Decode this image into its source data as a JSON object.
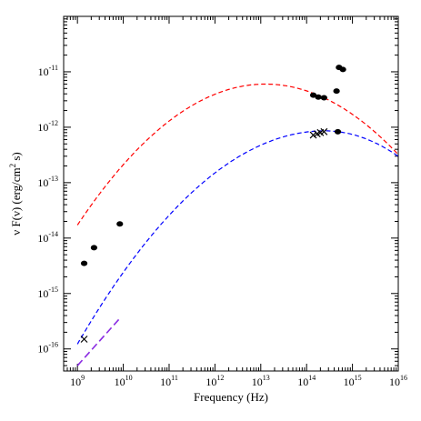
{
  "chart_data": {
    "type": "scatter",
    "title": "",
    "xlabel": "Frequency  (Hz)",
    "ylabel_main": "ν F(ν)  (erg/cm",
    "ylabel_sup": "2",
    "ylabel_end": " s)",
    "x_scale": "log",
    "y_scale": "log",
    "xlim": [
      500000000.0,
      1e+16
    ],
    "ylim": [
      4e-17,
      1e-10
    ],
    "x_ticks": [
      {
        "base": "10",
        "exp": "9",
        "value": 1000000000.0
      },
      {
        "base": "10",
        "exp": "10",
        "value": 10000000000.0
      },
      {
        "base": "10",
        "exp": "11",
        "value": 100000000000.0
      },
      {
        "base": "10",
        "exp": "12",
        "value": 1000000000000.0
      },
      {
        "base": "10",
        "exp": "13",
        "value": 10000000000000.0
      },
      {
        "base": "10",
        "exp": "14",
        "value": 100000000000000.0
      },
      {
        "base": "10",
        "exp": "15",
        "value": 1000000000000000.0
      },
      {
        "base": "10",
        "exp": "16",
        "value": 1e+16
      }
    ],
    "y_ticks": [
      {
        "base": "10",
        "exp": "-16",
        "value": 1e-16
      },
      {
        "base": "10",
        "exp": "-15",
        "value": 1e-15
      },
      {
        "base": "10",
        "exp": "-14",
        "value": 1e-14
      },
      {
        "base": "10",
        "exp": "-13",
        "value": 1e-13
      },
      {
        "base": "10",
        "exp": "-12",
        "value": 1e-12
      },
      {
        "base": "10",
        "exp": "-11",
        "value": 1e-11
      }
    ],
    "series": [
      {
        "marker": "circle",
        "color": "#000000",
        "points": [
          {
            "x": 1400000000.0,
            "y": 3.5e-15
          },
          {
            "x": 2300000000.0,
            "y": 6.7e-15
          },
          {
            "x": 8400000000.0,
            "y": 1.8e-14
          },
          {
            "x": 140000000000000.0,
            "y": 3.8e-12
          },
          {
            "x": 180000000000000.0,
            "y": 3.5e-12
          },
          {
            "x": 240000000000000.0,
            "y": 3.4e-12
          },
          {
            "x": 450000000000000.0,
            "y": 4.5e-12
          },
          {
            "x": 480000000000000.0,
            "y": 8.3e-13
          },
          {
            "x": 510000000000000.0,
            "y": 1.2e-11
          },
          {
            "x": 620000000000000.0,
            "y": 1.1e-11
          }
        ]
      },
      {
        "marker": "cross",
        "color": "#000000",
        "points": [
          {
            "x": 1400000000.0,
            "y": 1.5e-16
          },
          {
            "x": 140000000000000.0,
            "y": 7.2e-13
          },
          {
            "x": 170000000000000.0,
            "y": 7.6e-13
          },
          {
            "x": 200000000000000.0,
            "y": 8e-13
          },
          {
            "x": 240000000000000.0,
            "y": 8.3e-13
          }
        ]
      },
      {
        "style": "dashed",
        "color": "#ff0000",
        "curve": {
          "peak_x": 12600000000000.0,
          "peak_y": 6e-12,
          "alpha_low": 0.55,
          "alpha_high": 0.55
        },
        "x_range": [
          1000000000.0,
          1e+16
        ]
      },
      {
        "style": "dashed",
        "color": "#0000ff",
        "curve": {
          "peak_x": 250000000000000.0,
          "peak_y": 8.6e-13,
          "alpha_low": 0.48,
          "alpha_high": 0.65
        },
        "x_range": [
          1000000000.0,
          1e+16
        ]
      },
      {
        "style": "dashed",
        "color": "#8a2be2",
        "line": [
          {
            "x": 1000000000.0,
            "y": 5e-17
          },
          {
            "x": 8500000000.0,
            "y": 3.6e-16
          }
        ]
      }
    ],
    "grid": false,
    "legend": "none"
  }
}
